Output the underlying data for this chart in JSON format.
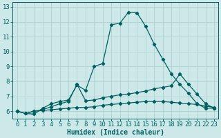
{
  "xlabel": "Humidex (Indice chaleur)",
  "bg_color": "#cde8e8",
  "grid_color": "#b0d0d0",
  "line_color": "#006060",
  "xlim": [
    -0.5,
    23.5
  ],
  "ylim": [
    5.5,
    13.3
  ],
  "xticks": [
    0,
    1,
    2,
    3,
    4,
    5,
    6,
    7,
    8,
    9,
    10,
    11,
    12,
    13,
    14,
    15,
    16,
    17,
    18,
    19,
    20,
    21,
    22,
    23
  ],
  "yticks": [
    6,
    7,
    8,
    9,
    10,
    11,
    12,
    13
  ],
  "line1_x": [
    0,
    1,
    2,
    3,
    4,
    5,
    6,
    7,
    8,
    9,
    10,
    11,
    12,
    13,
    14,
    15,
    16,
    17,
    18,
    19,
    20,
    21,
    22,
    23
  ],
  "line1_y": [
    6.0,
    5.85,
    5.8,
    6.2,
    6.5,
    6.65,
    6.75,
    7.75,
    7.4,
    9.0,
    9.2,
    11.8,
    11.9,
    12.65,
    12.6,
    11.7,
    10.5,
    9.5,
    8.5,
    7.8,
    7.2,
    6.5,
    6.2,
    6.2
  ],
  "line2_x": [
    0,
    1,
    2,
    3,
    4,
    5,
    6,
    7,
    8,
    9,
    10,
    11,
    12,
    13,
    14,
    15,
    16,
    17,
    18,
    19,
    20,
    21,
    22,
    23
  ],
  "line2_y": [
    6.0,
    5.85,
    6.0,
    6.1,
    6.3,
    6.5,
    6.65,
    7.8,
    6.7,
    6.75,
    6.9,
    7.0,
    7.1,
    7.15,
    7.25,
    7.35,
    7.5,
    7.6,
    7.7,
    8.5,
    7.8,
    7.15,
    6.5,
    6.2
  ],
  "line3_x": [
    0,
    1,
    2,
    3,
    4,
    5,
    6,
    7,
    8,
    9,
    10,
    11,
    12,
    13,
    14,
    15,
    16,
    17,
    18,
    19,
    20,
    21,
    22,
    23
  ],
  "line3_y": [
    6.0,
    5.85,
    6.0,
    6.05,
    6.1,
    6.15,
    6.2,
    6.25,
    6.25,
    6.3,
    6.4,
    6.45,
    6.5,
    6.55,
    6.6,
    6.65,
    6.65,
    6.65,
    6.6,
    6.55,
    6.5,
    6.45,
    6.35,
    6.25
  ],
  "marker": "D",
  "markersize": 2.2,
  "linewidth": 0.9,
  "xlabel_fontsize": 7,
  "tick_fontsize": 6.5
}
